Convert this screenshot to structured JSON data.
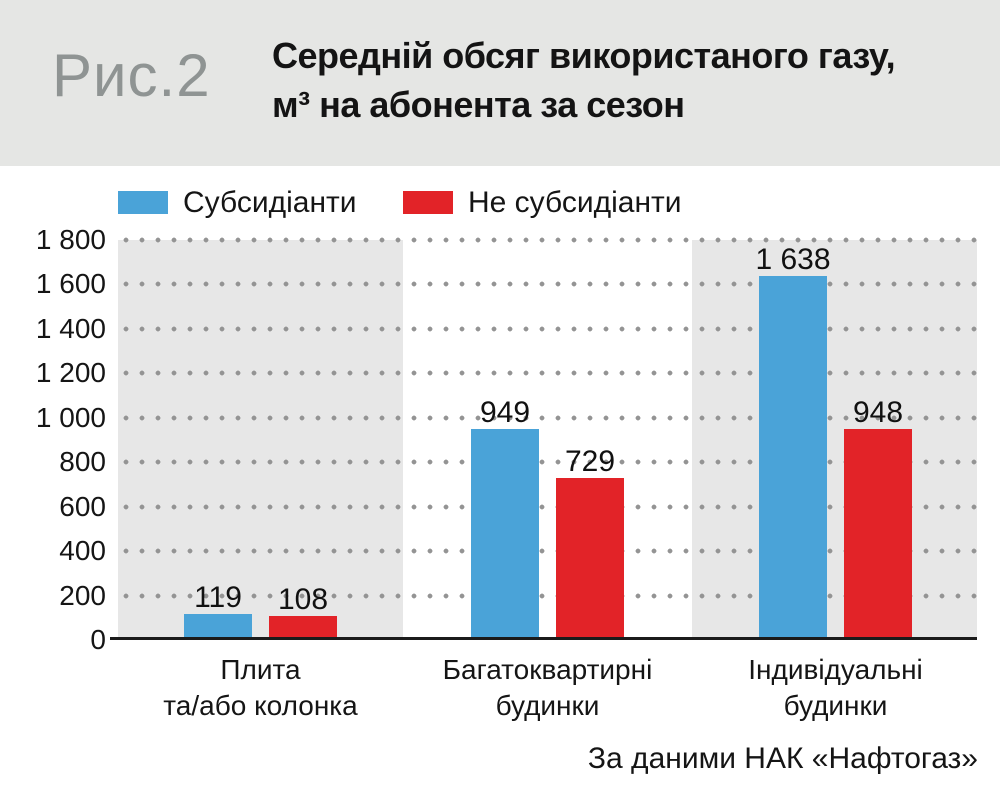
{
  "header": {
    "figure_label": "Рис.2",
    "title_line1": "Середній обсяг використаного газу,",
    "title_line2": "м³ на абонента за сезон"
  },
  "footer": {
    "source": "За даними НАК «Нафтогаз»"
  },
  "colors": {
    "header_bg": "#e5e6e4",
    "figure_label_gray": "#8f9493",
    "band_gray": "#e7e7e7",
    "dot_gray": "#949494",
    "axis_black": "#1b1b1b",
    "series_blue": "#4aa3d8",
    "series_red": "#e22328"
  },
  "chart_data": {
    "type": "bar",
    "title": "Середній обсяг використаного газу, м³ на абонента за сезон",
    "categories": [
      [
        "Плита",
        "та/або колонка"
      ],
      [
        "Багатоквартирні",
        "будинки"
      ],
      [
        "Індивідуальні",
        "будинки"
      ]
    ],
    "series": [
      {
        "name": "Субсидіанти",
        "color": "#4aa3d8",
        "values": [
          119,
          949,
          1638
        ],
        "labels": [
          "119",
          "949",
          "1 638"
        ]
      },
      {
        "name": "Не субсидіанти",
        "color": "#e22328",
        "values": [
          108,
          729,
          948
        ],
        "labels": [
          "108",
          "729",
          "948"
        ]
      }
    ],
    "ylim": [
      0,
      1800
    ],
    "ytick_step": 200,
    "ytick_labels": [
      "1 800",
      "1 600",
      "1 400",
      "1 200",
      "1 000",
      "800",
      "600",
      "400",
      "200",
      "0"
    ],
    "grid": "dotted-horizontal",
    "legend_position": "top-left",
    "band_colors": [
      "#e7e7e7",
      "#ffffff",
      "#e7e7e7"
    ],
    "source": "За даними НАК «Нафтогаз»"
  }
}
